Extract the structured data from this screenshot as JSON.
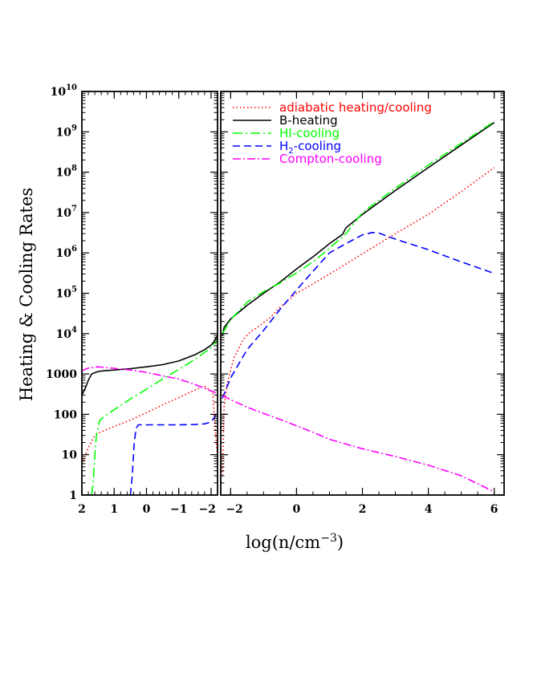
{
  "chart_data": {
    "type": "line",
    "xlabel": "log(n/cm",
    "xlabel_sup": "−3",
    "xlabel_close": ")",
    "ylabel": "Heating & Cooling Rates",
    "y_scale": "log",
    "ylim": [
      1,
      10000000000
    ],
    "y_ticks": [
      {
        "value": 1,
        "base": "1",
        "exp": ""
      },
      {
        "value": 10,
        "base": "10",
        "exp": ""
      },
      {
        "value": 100,
        "base": "100",
        "exp": ""
      },
      {
        "value": 1000,
        "base": "1000",
        "exp": ""
      },
      {
        "value": 10000,
        "base": "10",
        "exp": "4"
      },
      {
        "value": 100000,
        "base": "10",
        "exp": "5"
      },
      {
        "value": 1000000,
        "base": "10",
        "exp": "6"
      },
      {
        "value": 10000000,
        "base": "10",
        "exp": "7"
      },
      {
        "value": 100000000,
        "base": "10",
        "exp": "8"
      },
      {
        "value": 1000000000,
        "base": "10",
        "exp": "9"
      },
      {
        "value": 10000000000,
        "base": "10",
        "exp": "10"
      }
    ],
    "legend_position": "top-right",
    "panels": [
      {
        "name": "left",
        "xlim": [
          2,
          -2.2
        ],
        "x_ticks": [
          {
            "value": 2,
            "label": "2"
          },
          {
            "value": 1,
            "label": "1"
          },
          {
            "value": 0,
            "label": "0"
          },
          {
            "value": -1,
            "label": "−1"
          },
          {
            "value": -2,
            "label": "−2"
          }
        ],
        "series": [
          {
            "name": "adiabatic heating/cooling",
            "x": [
              2.0,
              1.9,
              1.8,
              1.6,
              1.4,
              1.0,
              0.5,
              0.0,
              -0.5,
              -1.0,
              -1.5,
              -1.8,
              -2.05,
              -2.18
            ],
            "y": [
              6,
              9,
              15,
              30,
              37,
              50,
              72,
              110,
              170,
              260,
              400,
              500,
              350,
              12
            ]
          },
          {
            "name": "B-heating",
            "x": [
              2.0,
              1.9,
              1.8,
              1.7,
              1.5,
              1.3,
              1.0,
              0.5,
              0.0,
              -0.5,
              -1.0,
              -1.5,
              -1.8,
              -2.0,
              -2.1,
              -2.2
            ],
            "y": [
              300,
              430,
              700,
              1000,
              1150,
              1200,
              1250,
              1350,
              1500,
              1700,
              2100,
              3000,
              4000,
              5200,
              6500,
              9000
            ]
          },
          {
            "name": "HI-cooling",
            "x": [
              1.7,
              1.65,
              1.6,
              1.55,
              1.45,
              1.3,
              1.0,
              0.5,
              0.0,
              -0.5,
              -1.0,
              -1.5,
              -2.0,
              -2.2
            ],
            "y": [
              1,
              2,
              10,
              30,
              70,
              90,
              130,
              240,
              420,
              750,
              1300,
              2300,
              4500,
              7000
            ]
          },
          {
            "name": "H2-cooling",
            "x": [
              0.5,
              0.44,
              0.38,
              0.32,
              0.25,
              0.0,
              -0.5,
              -1.0,
              -1.5,
              -1.8,
              -2.0,
              -2.15
            ],
            "y": [
              1,
              3,
              20,
              45,
              55,
              55,
              55,
              55,
              56,
              58,
              65,
              95
            ]
          },
          {
            "name": "Compton-cooling",
            "x": [
              2.0,
              1.8,
              1.5,
              1.0,
              0.5,
              0.0,
              -0.5,
              -1.0,
              -1.5,
              -2.0,
              -2.2
            ],
            "y": [
              1200,
              1400,
              1500,
              1380,
              1250,
              1100,
              900,
              750,
              550,
              380,
              330
            ]
          }
        ]
      },
      {
        "name": "right",
        "xlim": [
          -2.3,
          6.3
        ],
        "x_ticks": [
          {
            "value": -2,
            "label": "−2"
          },
          {
            "value": 0,
            "label": "0"
          },
          {
            "value": 2,
            "label": "2"
          },
          {
            "value": 4,
            "label": "4"
          },
          {
            "value": 6,
            "label": "6"
          }
        ],
        "series": [
          {
            "name": "adiabatic heating/cooling",
            "x": [
              -2.25,
              -2.2,
              -2.1,
              -1.9,
              -1.6,
              -1.4,
              -1.2,
              -0.8,
              -0.5,
              0.0,
              0.5,
              1.0,
              1.5,
              2.0,
              3.0,
              4.0,
              5.0,
              6.0
            ],
            "y": [
              3,
              150,
              600,
              2500,
              7500,
              11000,
              14000,
              25000,
              45000,
              100000,
              170000,
              300000,
              530000,
              950000,
              3000000,
              9000000,
              33000000,
              130000000
            ]
          },
          {
            "name": "B-heating",
            "x": [
              -2.25,
              -2.2,
              -2.0,
              -1.5,
              -1.0,
              -0.5,
              0.0,
              0.5,
              1.0,
              1.4,
              1.5,
              2.0,
              3.0,
              4.0,
              5.0,
              6.0
            ],
            "y": [
              9000,
              14000,
              23000,
              50000,
              100000,
              190000,
              400000,
              800000,
              1700000,
              2900000,
              4200000,
              9000000,
              35000000,
              130000000,
              470000000,
              1700000000
            ]
          },
          {
            "name": "HI-cooling",
            "x": [
              -2.25,
              -2.0,
              -1.5,
              -1.0,
              -0.5,
              0.0,
              0.5,
              1.0,
              1.5,
              2.0,
              3.0,
              4.0,
              5.0,
              6.0
            ],
            "y": [
              10000,
              22000,
              60000,
              110000,
              180000,
              320000,
              600000,
              1300000,
              3000000,
              10000000,
              40000000,
              150000000,
              520000000,
              1800000000
            ]
          },
          {
            "name": "H2-cooling",
            "x": [
              -2.25,
              -2.0,
              -1.5,
              -1.0,
              -0.5,
              0.0,
              0.5,
              1.0,
              1.5,
              2.0,
              2.3,
              2.5,
              3.0,
              4.0,
              5.0,
              6.0
            ],
            "y": [
              250,
              800,
              4000,
              12000,
              40000,
              120000,
              350000,
              1000000,
              1700000,
              2800000,
              3200000,
              3100000,
              2200000,
              1200000,
              600000,
              310000
            ]
          },
          {
            "name": "Compton-cooling",
            "x": [
              -2.25,
              -2.0,
              -1.5,
              -1.0,
              -0.5,
              0.0,
              0.5,
              1.0,
              2.0,
              3.0,
              4.0,
              5.0,
              6.0
            ],
            "y": [
              290,
              230,
              150,
              105,
              75,
              52,
              36,
              24,
              14,
              9,
              5.5,
              3,
              1.2
            ]
          }
        ]
      }
    ],
    "legend": [
      {
        "name": "adiabatic heating/cooling",
        "color": "#ff0000",
        "dash": "1.5 3",
        "label_html": "adiabatic heating/cooling"
      },
      {
        "name": "B-heating",
        "color": "#000000",
        "dash": "",
        "label_html": "B-heating"
      },
      {
        "name": "HI-cooling",
        "color": "#00ff00",
        "dash": "12 4 2 4",
        "label_html": "HI-cooling"
      },
      {
        "name": "H2-cooling",
        "color": "#0000ff",
        "dash": "9 5",
        "label_html": "H2-cooling"
      },
      {
        "name": "Compton-cooling",
        "color": "#ff00ff",
        "dash": "10 3 2 3",
        "label_html": "Compton-cooling"
      }
    ]
  }
}
